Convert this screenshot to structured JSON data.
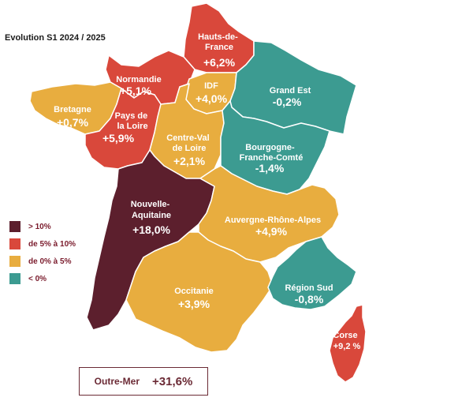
{
  "title": "Evolution S1 2024 / 2025",
  "colors": {
    "gt10": "#5c1f2d",
    "5to10": "#d9483b",
    "0to5": "#e8ad3f",
    "neg": "#3c9b91"
  },
  "legend": [
    {
      "label": "> 10%",
      "color": "#5c1f2d"
    },
    {
      "label": "de 5% à 10%",
      "color": "#d9483b"
    },
    {
      "label": "de 0% à 5%",
      "color": "#e8ad3f"
    },
    {
      "label": "< 0%",
      "color": "#3c9b91"
    }
  ],
  "regions": {
    "hdf": {
      "name_lines": [
        "Hauts-de-",
        "France"
      ],
      "value": "+6,2%",
      "color": "#d9483b"
    },
    "normandie": {
      "name_lines": [
        "Normandie"
      ],
      "value": "+5,1%",
      "color": "#d9483b"
    },
    "idf": {
      "name_lines": [
        "IDF"
      ],
      "value": "+4,0%",
      "color": "#e8ad3f"
    },
    "grandest": {
      "name_lines": [
        "Grand Est"
      ],
      "value": "-0,2%",
      "color": "#3c9b91"
    },
    "bretagne": {
      "name_lines": [
        "Bretagne"
      ],
      "value": "+0,7%",
      "color": "#e8ad3f"
    },
    "pdl": {
      "name_lines": [
        "Pays de",
        "la Loire"
      ],
      "value": "+5,9%",
      "color": "#d9483b"
    },
    "cvl": {
      "name_lines": [
        "Centre-Val",
        "de Loire"
      ],
      "value": "+2,1%",
      "color": "#e8ad3f"
    },
    "bfc": {
      "name_lines": [
        "Bourgogne-",
        "Franche-Comté"
      ],
      "value": "-1,4%",
      "color": "#3c9b91"
    },
    "na": {
      "name_lines": [
        "Nouvelle-",
        "Aquitaine"
      ],
      "value": "+18,0%",
      "color": "#5c1f2d"
    },
    "ara": {
      "name_lines": [
        "Auvergne-Rhône-Alpes"
      ],
      "value": "+4,9%",
      "color": "#e8ad3f"
    },
    "occitanie": {
      "name_lines": [
        "Occitanie"
      ],
      "value": "+3,9%",
      "color": "#e8ad3f"
    },
    "sud": {
      "name_lines": [
        "Région Sud"
      ],
      "value": "-0,8%",
      "color": "#3c9b91"
    },
    "corse": {
      "name_lines": [
        "Corse"
      ],
      "value": "+9,2 %",
      "color": "#d9483b"
    }
  },
  "outre_mer": {
    "name": "Outre-Mer",
    "value": "+31,6%"
  }
}
